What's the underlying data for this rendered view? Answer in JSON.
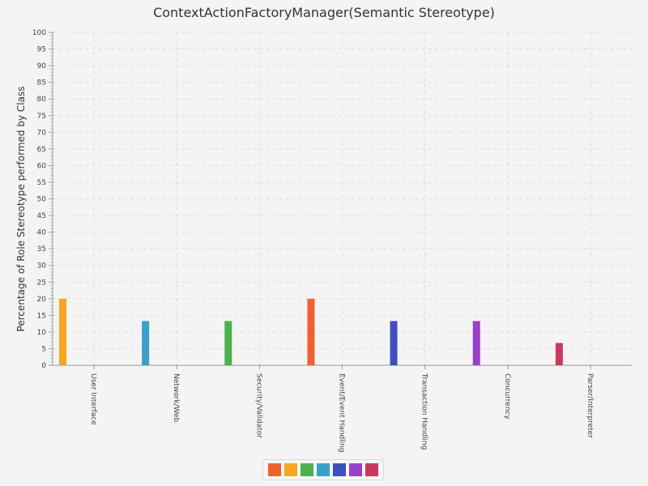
{
  "chart_data": {
    "type": "bar",
    "title": "ContextActionFactoryManager(Semantic Stereotype)",
    "xlabel": "",
    "ylabel": "Percentage of Role Stereotype performed by Class",
    "ylim": [
      0,
      100
    ],
    "ytick_step": 5,
    "grid": true,
    "legend_position": "bottom",
    "categories": [
      "User Interface",
      "Network/Web",
      "Security/Validator",
      "Event/Event Handling",
      "Transaction Handling",
      "Concurrency",
      "Parser/Interpreter"
    ],
    "values": [
      20,
      13.3,
      13.3,
      20,
      13.3,
      13.3,
      6.7
    ],
    "bar_colors": [
      "#f5a623",
      "#3aa0c8",
      "#4cb050",
      "#f0612f",
      "#3f4fc0",
      "#9a3fc8",
      "#c83a5e"
    ],
    "legend_colors": [
      "#f0612f",
      "#f5a623",
      "#4cb050",
      "#3aa0c8",
      "#3f4fc0",
      "#9a3fc8",
      "#c83a5e"
    ]
  }
}
